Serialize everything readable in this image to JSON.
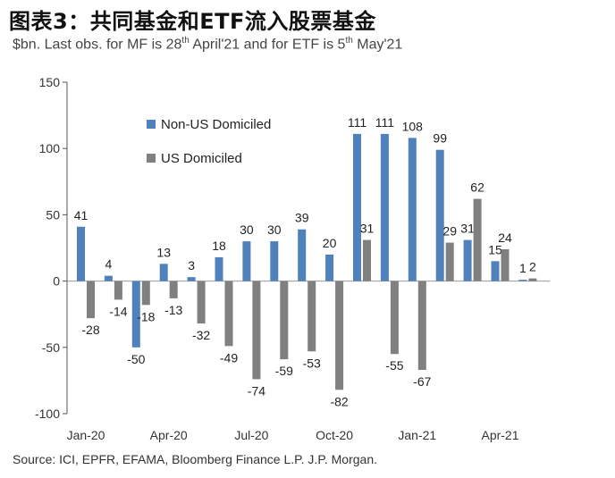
{
  "header": {
    "title": "图表3：共同基金和ETF流入股票基金",
    "subtitle_prefix": "$bn. Last obs. for MF is 28",
    "subtitle_sup1": "th",
    "subtitle_middle": " April'21 and for ETF is 5",
    "subtitle_sup2": "th",
    "subtitle_suffix": " May'21"
  },
  "footer": {
    "source": "Source: ICI, EPFR, EFAMA, Bloomberg Finance L.P. J.P. Morgan."
  },
  "chart_data": {
    "type": "bar",
    "title": "图表3：共同基金和ETF流入股票基金",
    "ylabel": "$bn",
    "ylim": [
      -100,
      150
    ],
    "yticks": [
      -100,
      -50,
      0,
      50,
      100,
      150
    ],
    "categories": [
      "Jan-20",
      "Feb-20",
      "Mar-20",
      "Apr-20",
      "May-20",
      "Jun-20",
      "Jul-20",
      "Aug-20",
      "Sep-20",
      "Oct-20",
      "Nov-20",
      "Dec-20",
      "Jan-21",
      "Feb-21",
      "Mar-21",
      "Apr-21",
      "May-21"
    ],
    "x_tick_labels": [
      {
        "index": 0,
        "label": "Jan-20"
      },
      {
        "index": 3,
        "label": "Apr-20"
      },
      {
        "index": 6,
        "label": "Jul-20"
      },
      {
        "index": 9,
        "label": "Oct-20"
      },
      {
        "index": 12,
        "label": "Jan-21"
      },
      {
        "index": 15,
        "label": "Apr-21"
      }
    ],
    "legend_position": "upper-left",
    "series": [
      {
        "name": "Non-US Domiciled",
        "color": "#4f81bd",
        "values": [
          41,
          4,
          -50,
          13,
          3,
          18,
          30,
          30,
          39,
          20,
          111,
          111,
          108,
          99,
          31,
          15,
          1
        ]
      },
      {
        "name": "US Domiciled",
        "color": "#808080",
        "values": [
          -28,
          -14,
          -18,
          -13,
          -32,
          -49,
          -74,
          -59,
          -53,
          -82,
          31,
          -55,
          -67,
          29,
          62,
          24,
          2
        ]
      }
    ]
  }
}
